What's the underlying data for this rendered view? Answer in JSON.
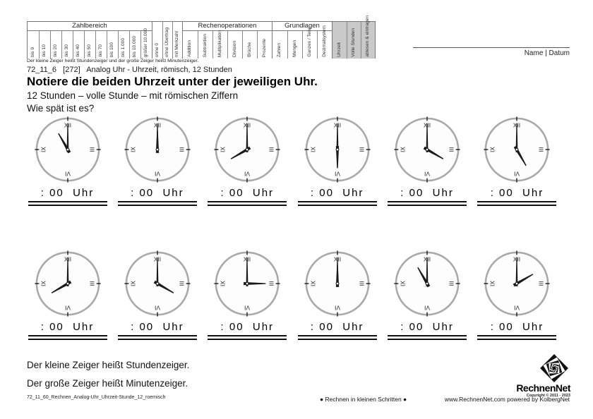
{
  "page": {
    "header_note": "Der kleine Zeiger heißt Stundenzeiger und der große Zeiger heißt Minutenzeiger.",
    "worksheet_id_line": "72_11_6   [272]   Analog Uhr - Uhrzeit, römisch, 12 Stunden",
    "title": "Notiere die beiden Uhrzeit unter der jeweiligen Uhr.",
    "subtitle": "12 Stunden – volle Stunde – mit römischen Ziffern",
    "question": "Wie spät ist es?",
    "name_date_label": "Name | Datum"
  },
  "skills_table": {
    "groups": [
      {
        "title": "Zahlbereich",
        "highlight": false,
        "columns": [
          "bis 9",
          "bis 10",
          "bis 20",
          "bis 30",
          "bis 40",
          "bis 50",
          "bis 70",
          "bis 100",
          "bis 1.000",
          "bis 10.000",
          "größer 10.000"
        ]
      },
      {
        "title": "",
        "highlight": false,
        "columns": [
          "ohne 0",
          "ohne Übertrag",
          "mit Merkzahl"
        ]
      },
      {
        "title": "Rechenoperationen",
        "highlight": false,
        "columns": [
          "Addition",
          "Subtraktion",
          "Multiplikation",
          "Division",
          "Brüche",
          "Prozente"
        ]
      },
      {
        "title": "Grundlagen",
        "highlight": false,
        "columns": [
          "Zahlen",
          "Mengen",
          "Ganzes / Teile",
          "Dezimalsystem"
        ]
      },
      {
        "title": "",
        "highlight": true,
        "columns": [
          "Uhrzeit",
          "Volle Stunden",
          "ablesen & eintragen"
        ]
      }
    ],
    "highlight_color": "#c9c9c9"
  },
  "clocks": {
    "numerals": [
      "XII",
      "III",
      "VI",
      "IX"
    ],
    "answer_label": ": 00  Uhr",
    "items": [
      {
        "row": 1,
        "hour": 11,
        "time": "11:00"
      },
      {
        "row": 1,
        "hour": 12,
        "time": "12:00"
      },
      {
        "row": 1,
        "hour": 8,
        "time": "8:00"
      },
      {
        "row": 1,
        "hour": 6,
        "time": "6:00"
      },
      {
        "row": 1,
        "hour": 4,
        "time": "4:00"
      },
      {
        "row": 1,
        "hour": 5,
        "time": "5:00"
      },
      {
        "row": 2,
        "hour": 8,
        "time": "8:00"
      },
      {
        "row": 2,
        "hour": 4,
        "time": "4:00"
      },
      {
        "row": 2,
        "hour": 3,
        "time": "3:00"
      },
      {
        "row": 2,
        "hour": 12,
        "time": "12:00"
      },
      {
        "row": 2,
        "hour": 11,
        "time": "11:00"
      },
      {
        "row": 2,
        "hour": 2,
        "time": "2:00"
      }
    ],
    "face_stroke_color": "#a9a9a9",
    "hand_color": "#1a1a1a"
  },
  "footer": {
    "note1": "Der kleine Zeiger heißt Stundenzeiger.",
    "note2": "Der große Zeiger heißt Minutenzeiger.",
    "file_id": "72_11_60_Rechnen_Analog-Uhr_Uhrzeit-Stunde_12_roemisch",
    "slogan": "● Rechnen in kleinen Schritten ●",
    "website": "www.RechnenNet.com powered by KolbergNet",
    "logo_text": "RechnenNet",
    "copyright": "Copyright © 2011 - 2023"
  }
}
